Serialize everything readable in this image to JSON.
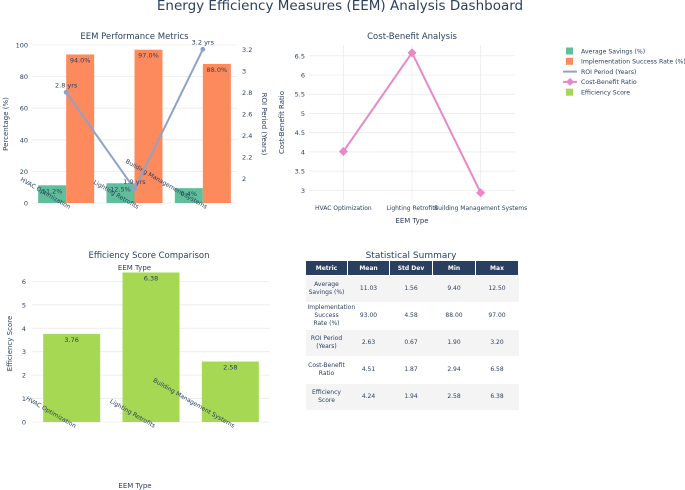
{
  "title": "Energy Efficiency Measures (EEM) Analysis Dashboard",
  "colors": {
    "savings": "#5fbf9a",
    "success": "#fd8a5d",
    "roi": "#8fa1c9",
    "ratio": "#e589c9",
    "efficiency": "#a6d854",
    "text": "#2a3f5f",
    "grid": "#ebebeb",
    "header": "#2a3f5f"
  },
  "legend": [
    {
      "label": "Average Savings (%)",
      "kind": "square",
      "color": "#5fbf9a"
    },
    {
      "label": "Implementation Success Rate (%)",
      "kind": "square",
      "color": "#fd8a5d"
    },
    {
      "label": "ROI Period (Years)",
      "kind": "line",
      "color": "#8fa1c9"
    },
    {
      "label": "Cost-Benefit Ratio",
      "kind": "diamond-line",
      "color": "#e589c9"
    },
    {
      "label": "Efficiency Score",
      "kind": "square",
      "color": "#a6d854"
    }
  ],
  "chart_data": [
    {
      "id": "performance",
      "type": "bar",
      "title": "EEM Performance Metrics",
      "categories": [
        "HVAC Optimization",
        "Lighting Retrofits",
        "Building Management Systems"
      ],
      "xlabel": "EEM Type",
      "ylabel": "Percentage (%)",
      "y2label": "ROI Period (Years)",
      "ylim": [
        0,
        100
      ],
      "yticks": [
        0,
        20,
        40,
        60,
        80,
        100
      ],
      "y2lim": [
        1.77,
        3.24
      ],
      "y2ticks": [
        2,
        2.2,
        2.4,
        2.6,
        2.8,
        3,
        3.2
      ],
      "series": [
        {
          "name": "Average Savings (%)",
          "type": "bar",
          "values": [
            11.2,
            12.5,
            9.4
          ],
          "labels": [
            "11.2%",
            "12.5%",
            "9.4%"
          ]
        },
        {
          "name": "Implementation Success Rate (%)",
          "type": "bar",
          "values": [
            94.0,
            97.0,
            88.0
          ],
          "labels": [
            "94.0%",
            "97.0%",
            "88.0%"
          ]
        },
        {
          "name": "ROI Period (Years)",
          "type": "line",
          "axis": "y2",
          "values": [
            2.8,
            1.9,
            3.2
          ],
          "labels": [
            "2.8 yrs",
            "1.9 yrs",
            "3.2 yrs"
          ]
        }
      ]
    },
    {
      "id": "costbenefit",
      "type": "line",
      "title": "Cost-Benefit Analysis",
      "categories": [
        "HVAC Optimization",
        "Lighting Retrofits",
        "Building Management Systems"
      ],
      "xlabel": "EEM Type",
      "ylabel": "Cost-Benefit Ratio",
      "ylim": [
        2.75,
        6.78
      ],
      "yticks": [
        3,
        3.5,
        4,
        4.5,
        5,
        5.5,
        6,
        6.5
      ],
      "series": [
        {
          "name": "Cost-Benefit Ratio",
          "values": [
            4.01,
            6.58,
            2.94
          ]
        }
      ]
    },
    {
      "id": "efficiency",
      "type": "bar",
      "title": "Efficiency Score Comparison",
      "categories": [
        "HVAC Optimization",
        "Lighting Retrofits",
        "Building Management Systems"
      ],
      "xlabel": "EEM Type",
      "ylabel": "Efficiency Score",
      "ylim": [
        0,
        6.7
      ],
      "yticks": [
        0,
        1,
        2,
        3,
        4,
        5,
        6
      ],
      "series": [
        {
          "name": "Efficiency Score",
          "values": [
            3.76,
            6.38,
            2.58
          ],
          "labels": [
            "3.76",
            "6.38",
            "2.58"
          ]
        }
      ]
    }
  ],
  "table": {
    "title": "Statistical Summary",
    "headers": [
      "Metric",
      "Mean",
      "Std Dev",
      "Min",
      "Max"
    ],
    "rows": [
      [
        "Average Savings (%)",
        "11.03",
        "1.56",
        "9.40",
        "12.50"
      ],
      [
        "Implementation Success Rate (%)",
        "93.00",
        "4.58",
        "88.00",
        "97.00"
      ],
      [
        "ROI Period (Years)",
        "2.63",
        "0.67",
        "1.90",
        "3.20"
      ],
      [
        "Cost-Benefit Ratio",
        "4.51",
        "1.87",
        "2.94",
        "6.58"
      ],
      [
        "Efficiency Score",
        "4.24",
        "1.94",
        "2.58",
        "6.38"
      ]
    ]
  }
}
